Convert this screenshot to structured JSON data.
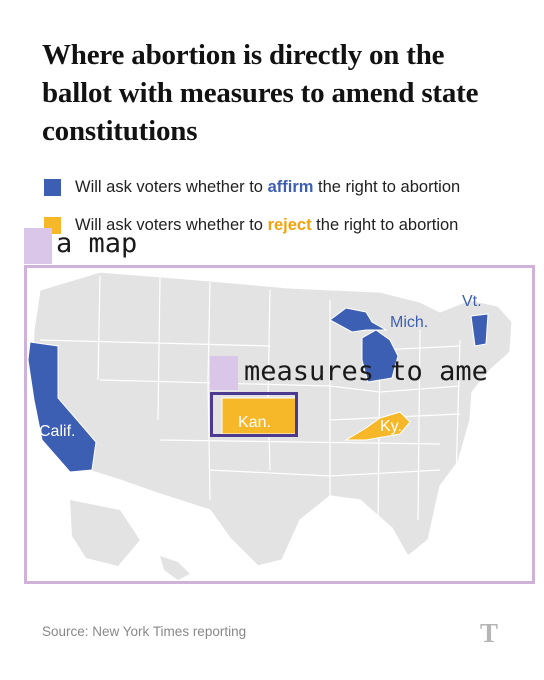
{
  "headline": "Where abortion is directly on the ballot with measures to amend state constitutions",
  "legend": [
    {
      "before": "Will ask voters whether to ",
      "keyword": "affirm",
      "after": " the right to abortion",
      "color": "#3d5fb3",
      "keyword_color": "#3d5fb3"
    },
    {
      "before": "Will ask voters whether to ",
      "keyword": "reject",
      "after": " the right to abortion",
      "color": "#f6b829",
      "keyword_color": "#f2a20c"
    }
  ],
  "map": {
    "base_color": "#e3e3e3",
    "border_color": "#ffffff",
    "states": [
      {
        "label": "Calif.",
        "category": "affirm"
      },
      {
        "label": "Mich.",
        "category": "affirm"
      },
      {
        "label": "Vt.",
        "category": "affirm"
      },
      {
        "label": "Kan.",
        "category": "reject"
      },
      {
        "label": "Ky.",
        "category": "reject"
      }
    ]
  },
  "annotations": {
    "map_caption": "a map",
    "measures_caption": "measures to ame"
  },
  "source": "Source: New York Times reporting",
  "logo_glyph": "T"
}
